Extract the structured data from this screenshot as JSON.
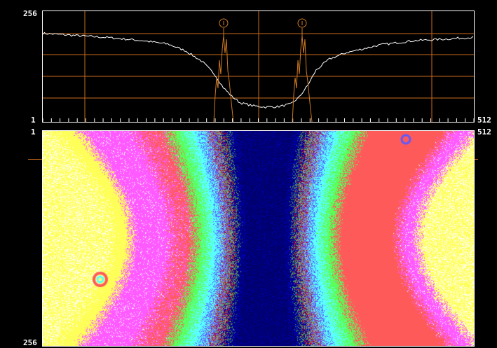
{
  "profile": {
    "y_max_label": "256",
    "y_min_label": "1",
    "x_max_label": "512",
    "cursor_markers": [
      "⊙",
      "⊙"
    ],
    "trace_color": "#ffffff",
    "cursor_color": "#d07a22",
    "grid_color": "#c86a1c"
  },
  "image": {
    "row_top_label": "1",
    "row_bottom_label": "256",
    "col_max_label": "512",
    "palette": [
      "#ffffff",
      "#ffff5a",
      "#ff5aff",
      "#ff5a5a",
      "#5aff5a",
      "#5affff",
      "#5a5aff",
      "#a0a0a0",
      "#b4002a",
      "#5a9e5a",
      "#0000b4",
      "#00006e"
    ]
  },
  "chart_data": {
    "type": "line",
    "title": "",
    "xlabel": "",
    "ylabel": "",
    "xlim": [
      1,
      512
    ],
    "ylim": [
      1,
      256
    ],
    "series": [
      {
        "x": [
          1,
          40,
          80,
          120,
          150,
          170,
          190,
          205,
          215,
          225,
          235,
          250,
          265,
          280,
          295,
          305,
          315,
          325,
          340,
          360,
          400,
          440,
          480,
          512
        ],
        "values": [
          205,
          200,
          195,
          188,
          180,
          165,
          140,
          110,
          80,
          60,
          45,
          38,
          35,
          36,
          42,
          58,
          85,
          120,
          145,
          160,
          178,
          188,
          192,
          196
        ]
      }
    ]
  }
}
